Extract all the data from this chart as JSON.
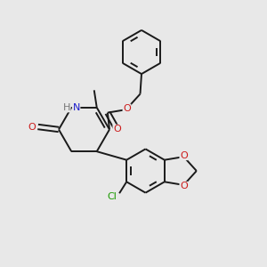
{
  "background_color": "#e8e8e8",
  "bond_color": "#1a1a1a",
  "atom_colors": {
    "N": "#1a1acc",
    "O": "#cc1a1a",
    "Cl": "#1a9900",
    "H": "#777777",
    "C": "#1a1a1a"
  },
  "lw": 1.4,
  "fs": 8.0
}
